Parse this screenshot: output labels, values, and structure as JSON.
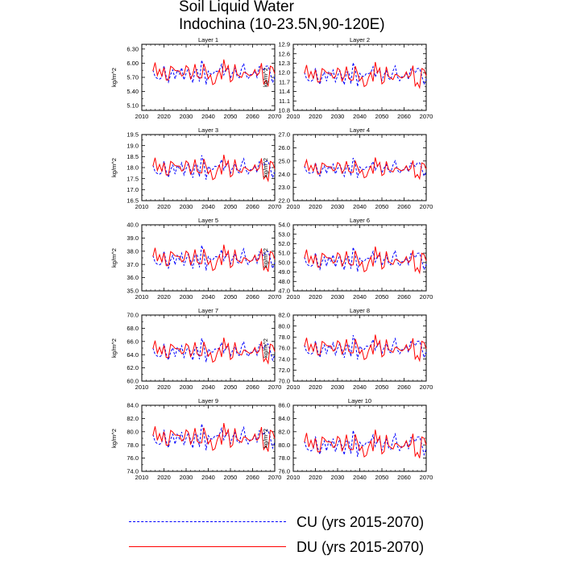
{
  "chart_data": {
    "type": "line",
    "title": "Soil Liquid Water",
    "subtitle": "Indochina (10-23.5N,90-120E)",
    "xlabel": "",
    "ylabel": "kg/m^2",
    "x_ticks": [
      "2010",
      "2020",
      "2030",
      "2040",
      "2050",
      "2060",
      "2070"
    ],
    "xlim": [
      2010,
      2070
    ],
    "series_info": [
      {
        "name": "CU (yrs 2015-2070)",
        "color": "#0000ff",
        "style": "dashed"
      },
      {
        "name": "DU (yrs 2015-2070)",
        "color": "#ff0000",
        "style": "solid"
      }
    ],
    "panels": [
      {
        "title": "Layer 1",
        "ylim": [
          5.0,
          6.4
        ],
        "yticks": [
          "6.30",
          "6.00",
          "5.70",
          "5.40",
          "5.10"
        ],
        "ytick_values": [
          6.3,
          6.0,
          5.7,
          5.4,
          5.1
        ],
        "mean": 5.78,
        "amp": 0.26
      },
      {
        "title": "Layer 2",
        "ylim": [
          10.8,
          12.9
        ],
        "yticks": [
          "12.9",
          "12.6",
          "12.3",
          "12.0",
          "11.7",
          "11.4",
          "11.1",
          "10.8"
        ],
        "ytick_values": [
          12.9,
          12.6,
          12.3,
          12.0,
          11.7,
          11.4,
          11.1,
          10.8
        ],
        "mean": 11.9,
        "amp": 0.38
      },
      {
        "title": "Layer 3",
        "ylim": [
          16.5,
          19.5
        ],
        "yticks": [
          "19.5",
          "19.0",
          "18.5",
          "18.0",
          "17.5",
          "17.0",
          "16.5"
        ],
        "ytick_values": [
          19.5,
          19.0,
          18.5,
          18.0,
          17.5,
          17.0,
          16.5
        ],
        "mean": 17.95,
        "amp": 0.55
      },
      {
        "title": "Layer 4",
        "ylim": [
          22.0,
          27.0
        ],
        "yticks": [
          "27.0",
          "26.0",
          "25.0",
          "24.0",
          "23.0",
          "22.0"
        ],
        "ytick_values": [
          27.0,
          26.0,
          25.0,
          24.0,
          23.0,
          22.0
        ],
        "mean": 24.4,
        "amp": 0.75
      },
      {
        "title": "Layer 5",
        "ylim": [
          35.0,
          40.0
        ],
        "yticks": [
          "40.0",
          "39.0",
          "38.0",
          "37.0",
          "36.0",
          "35.0"
        ],
        "ytick_values": [
          40.0,
          39.0,
          38.0,
          37.0,
          36.0,
          35.0
        ],
        "mean": 37.4,
        "amp": 0.95
      },
      {
        "title": "Layer 6",
        "ylim": [
          47.0,
          54.0
        ],
        "yticks": [
          "54.0",
          "53.0",
          "52.0",
          "51.0",
          "50.0",
          "49.0",
          "48.0",
          "47.0"
        ],
        "ytick_values": [
          54.0,
          53.0,
          52.0,
          51.0,
          50.0,
          49.0,
          48.0,
          47.0
        ],
        "mean": 50.2,
        "amp": 1.3
      },
      {
        "title": "Layer 7",
        "ylim": [
          60.0,
          70.0
        ],
        "yticks": [
          "70.0",
          "68.0",
          "66.0",
          "64.0",
          "62.0",
          "60.0"
        ],
        "ytick_values": [
          70.0,
          68.0,
          66.0,
          64.0,
          62.0,
          60.0
        ],
        "mean": 64.5,
        "amp": 1.8
      },
      {
        "title": "Layer 8",
        "ylim": [
          70.0,
          82.0
        ],
        "yticks": [
          "82.0",
          "80.0",
          "78.0",
          "76.0",
          "74.0",
          "72.0",
          "70.0"
        ],
        "ytick_values": [
          82.0,
          80.0,
          78.0,
          76.0,
          74.0,
          72.0,
          70.0
        ],
        "mean": 75.9,
        "amp": 2.2
      },
      {
        "title": "Layer 9",
        "ylim": [
          74.0,
          84.0
        ],
        "yticks": [
          "84.0",
          "82.0",
          "80.0",
          "78.0",
          "76.0",
          "74.0"
        ],
        "ytick_values": [
          84.0,
          82.0,
          80.0,
          78.0,
          76.0,
          74.0
        ],
        "mean": 79.0,
        "amp": 2.0
      },
      {
        "title": "Layer 10",
        "ylim": [
          76.0,
          86.0
        ],
        "yticks": [
          "86.0",
          "84.0",
          "82.0",
          "80.0",
          "78.0",
          "76.0"
        ],
        "ytick_values": [
          86.0,
          84.0,
          82.0,
          80.0,
          78.0,
          76.0
        ],
        "mean": 80.0,
        "amp": 2.0
      }
    ]
  },
  "legend": {
    "cu_label": "CU (yrs 2015-2070)",
    "du_label": "DU (yrs 2015-2070)",
    "cu_color": "#0000ff",
    "du_color": "#ff0000"
  }
}
